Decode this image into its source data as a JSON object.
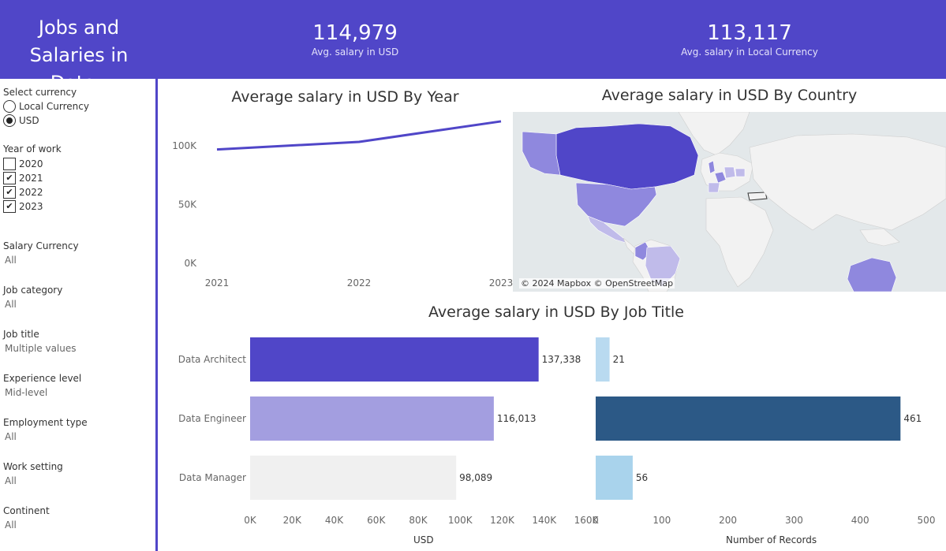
{
  "header": {
    "title_line1": "Jobs and",
    "title_line2": "Salaries in Data..",
    "kpi_usd_value": "114,979",
    "kpi_usd_label": "Avg. salary in USD",
    "kpi_local_value": "113,117",
    "kpi_local_label": "Avg. salary in Local Currency"
  },
  "filters": {
    "currency": {
      "title": "Select currency",
      "options": [
        "Local Currency",
        "USD"
      ],
      "selected": "USD"
    },
    "year": {
      "title": "Year of work",
      "options": [
        {
          "label": "2020",
          "checked": false
        },
        {
          "label": "2021",
          "checked": true
        },
        {
          "label": "2022",
          "checked": true
        },
        {
          "label": "2023",
          "checked": true
        }
      ]
    },
    "salary_currency": {
      "title": "Salary Currency",
      "value": "All"
    },
    "job_category": {
      "title": "Job category",
      "value": "All"
    },
    "job_title": {
      "title": "Job title",
      "value": "Multiple values"
    },
    "experience_level": {
      "title": "Experience level",
      "value": "Mid-level"
    },
    "employment_type": {
      "title": "Employment type",
      "value": "All"
    },
    "work_setting": {
      "title": "Work setting",
      "value": "All"
    },
    "continent": {
      "title": "Continent",
      "value": "All"
    }
  },
  "map": {
    "title": "Average salary in USD By Country",
    "attribution": "© 2024 Mapbox © OpenStreetMap",
    "colors": {
      "water": "#e3e8ea",
      "land": "#f2f2f2",
      "high": "#5046c8",
      "mid": "#8f88de",
      "low": "#c0bbea"
    }
  },
  "bar_axis_titles": {
    "usd": "USD",
    "records": "Number of Records"
  },
  "chart_data": [
    {
      "type": "line",
      "title": "Average salary in USD By Year",
      "x": [
        "2021",
        "2022",
        "2023"
      ],
      "series": [
        {
          "values": [
            97000,
            103500,
            121000
          ]
        }
      ],
      "y_ticks": [
        "0K",
        "50K",
        "100K"
      ],
      "ylim": [
        0,
        125000
      ],
      "color": "#5046c8",
      "grid": false
    },
    {
      "type": "bar",
      "orientation": "horizontal",
      "title": "Average salary in USD By Job Title",
      "categories": [
        "Data Architect",
        "Data Engineer",
        "Data Manager"
      ],
      "values": [
        137338,
        116013,
        98089
      ],
      "value_labels": [
        "137,338",
        "116,013",
        "98,089"
      ],
      "xlabel": "USD",
      "x_ticks": [
        "0K",
        "20K",
        "40K",
        "60K",
        "80K",
        "100K",
        "120K",
        "140K",
        "160K"
      ],
      "xlim": [
        0,
        160000
      ],
      "colors": [
        "#5046c8",
        "#a39ee0",
        "#f0f0f0"
      ]
    },
    {
      "type": "bar",
      "orientation": "horizontal",
      "categories": [
        "Data Architect",
        "Data Engineer",
        "Data Manager"
      ],
      "values": [
        21,
        461,
        56
      ],
      "value_labels": [
        "21",
        "461",
        "56"
      ],
      "xlabel": "Number of Records",
      "x_ticks": [
        "0",
        "100",
        "200",
        "300",
        "400",
        "500"
      ],
      "xlim": [
        0,
        500
      ],
      "colors": [
        "#b9daf0",
        "#2c5986",
        "#a9d3ec"
      ]
    }
  ]
}
